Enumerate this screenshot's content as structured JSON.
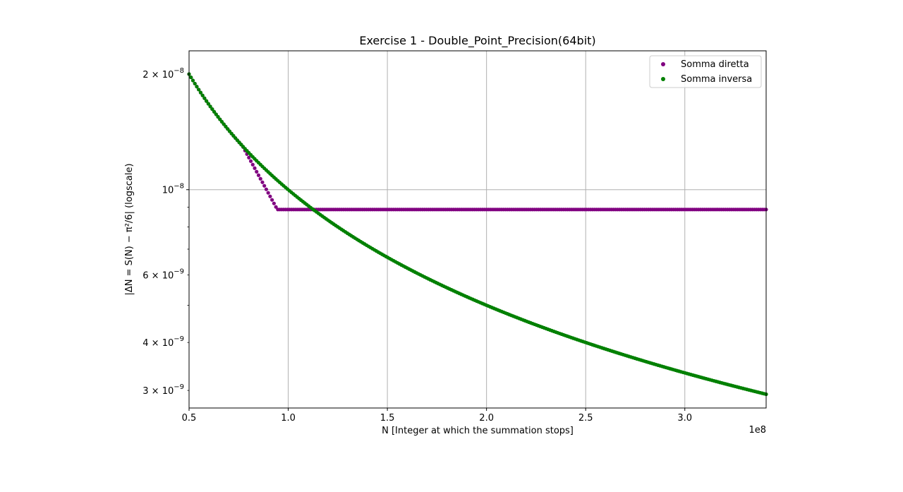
{
  "chart_data": {
    "type": "scatter",
    "title": "Exercise 1 -  Double_Point_Precision(64bit)",
    "xlabel": "N [Integer at which the summation stops]",
    "ylabel": "|ΔN = S(N) − π²/6| (logscale)",
    "x_offset_label": "1e8",
    "x_scale": "linear",
    "y_scale": "log",
    "xlim": [
      50000000,
      341000000
    ],
    "ylim": [
      2.7e-09,
      2.3e-08
    ],
    "grid": true,
    "legend_position": "top-right",
    "x_ticks": [
      {
        "value": 50000000,
        "label": "0.5"
      },
      {
        "value": 100000000,
        "label": "1.0"
      },
      {
        "value": 150000000,
        "label": "1.5"
      },
      {
        "value": 200000000,
        "label": "2.0"
      },
      {
        "value": 250000000,
        "label": "2.5"
      },
      {
        "value": 300000000,
        "label": "3.0"
      }
    ],
    "y_major_ticks": [
      {
        "value": 1e-08,
        "mantissa": "",
        "exponent": "−8"
      }
    ],
    "y_minor_ticks": [
      {
        "value": 2e-08,
        "mantissa": "2",
        "exponent": "−8"
      },
      {
        "value": 6e-09,
        "mantissa": "6",
        "exponent": "−9"
      },
      {
        "value": 4e-09,
        "mantissa": "4",
        "exponent": "−9"
      },
      {
        "value": 3e-09,
        "mantissa": "3",
        "exponent": "−9"
      },
      {
        "value": 5e-09,
        "mantissa": "",
        "exponent": ""
      },
      {
        "value": 7e-09,
        "mantissa": "",
        "exponent": ""
      },
      {
        "value": 8e-09,
        "mantissa": "",
        "exponent": ""
      },
      {
        "value": 9e-09,
        "mantissa": "",
        "exponent": ""
      }
    ],
    "series": [
      {
        "name": "Somma diretta",
        "color": "#800080",
        "model": "min(max(1/N, plateau), piecewise)",
        "plateau": 8.88e-09,
        "drop_start": 77000000,
        "drop_end": 94500000,
        "x_start": 50000000,
        "x_end": 341000000,
        "n_points": 300
      },
      {
        "name": "Somma inversa",
        "color": "#008000",
        "model": "1/N",
        "x_start": 50000000,
        "x_end": 341000000,
        "n_points": 300
      }
    ]
  }
}
